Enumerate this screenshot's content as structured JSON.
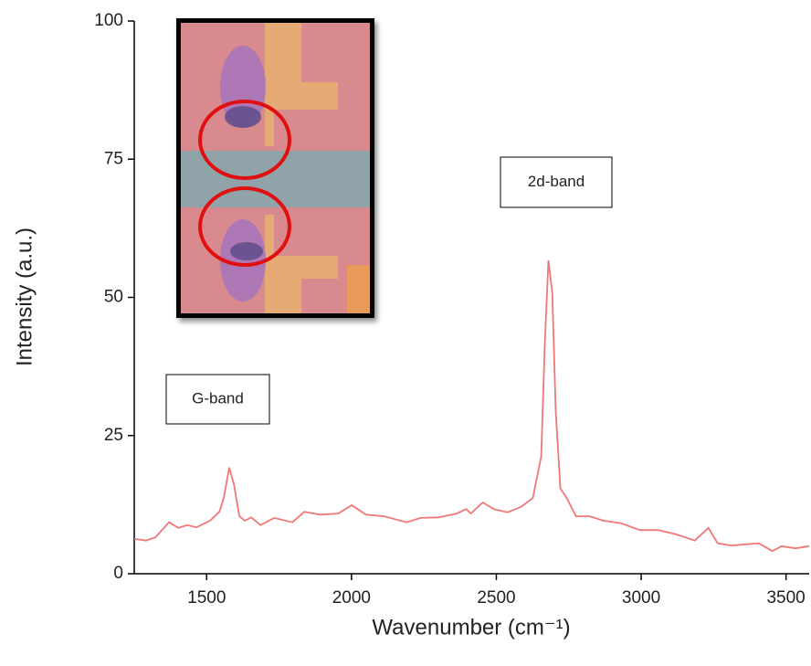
{
  "chart_data": {
    "type": "line",
    "xlabel": "Wavenumber (cm⁻¹)",
    "ylabel": "Intensity (a.u.)",
    "annotations": [
      {
        "text": "G-band"
      },
      {
        "text": "2d-band"
      }
    ],
    "x": [
      1250,
      1291,
      1323,
      1370,
      1402,
      1433,
      1465,
      1512,
      1544,
      1559,
      1578,
      1594,
      1613,
      1632,
      1654,
      1686,
      1733,
      1796,
      1837,
      1891,
      1954,
      2001,
      2049,
      2112,
      2191,
      2238,
      2301,
      2364,
      2396,
      2412,
      2453,
      2491,
      2538,
      2585,
      2626,
      2655,
      2667,
      2680,
      2693,
      2705,
      2721,
      2743,
      2775,
      2822,
      2869,
      2932,
      2995,
      3059,
      3122,
      3185,
      3232,
      3264,
      3311,
      3406,
      3453,
      3485,
      3532,
      3580
    ],
    "values": [
      6.3,
      6,
      6.6,
      9.3,
      8.3,
      8.8,
      8.4,
      9.6,
      11.2,
      13.7,
      19.2,
      16.2,
      10.4,
      9.6,
      10.2,
      8.8,
      10.1,
      9.3,
      11.2,
      10.7,
      10.9,
      12.4,
      10.7,
      10.4,
      9.3,
      10.1,
      10.2,
      10.9,
      11.7,
      10.9,
      12.9,
      11.7,
      11.1,
      12.1,
      13.7,
      21.2,
      41,
      56.7,
      50.9,
      29.4,
      15.4,
      13.7,
      10.4,
      10.4,
      9.6,
      9.1,
      7.9,
      7.9,
      7.1,
      6,
      8.3,
      5.5,
      5.1,
      5.5,
      4.1,
      5,
      4.6,
      5
    ],
    "color": "#f07878",
    "xlim": [
      1250,
      3580
    ],
    "xticks": [
      1500,
      2000,
      2500,
      3000,
      3500
    ],
    "ylim": [
      0,
      100
    ],
    "yticks": [
      0,
      25,
      50,
      75,
      100
    ]
  }
}
